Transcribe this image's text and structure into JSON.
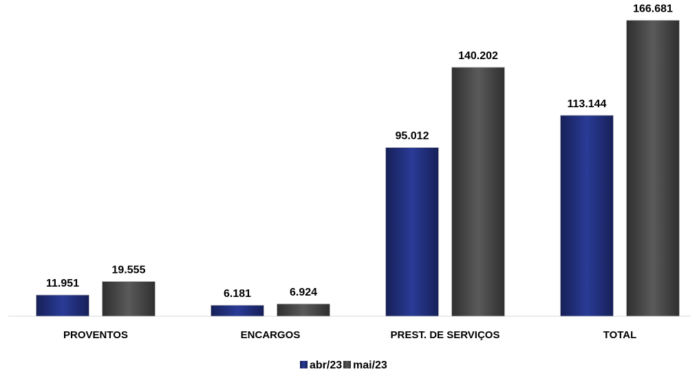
{
  "chart_data": {
    "type": "bar",
    "categories": [
      "PROVENTOS",
      "ENCARGOS",
      "PREST. DE SERVIÇOS",
      "TOTAL"
    ],
    "series": [
      {
        "name": "abr/23",
        "color": "#1f2d7a",
        "values": [
          11951,
          6181,
          95012,
          113144
        ],
        "labels": [
          "11.951",
          "6.181",
          "95.012",
          "113.144"
        ]
      },
      {
        "name": "mai/23",
        "color": "#454545",
        "values": [
          19555,
          6924,
          140202,
          166681
        ],
        "labels": [
          "19.555",
          "6.924",
          "140.202",
          "166.681"
        ]
      }
    ],
    "ylim": [
      0,
      175000
    ],
    "grid": false,
    "legend_position": "bottom"
  }
}
